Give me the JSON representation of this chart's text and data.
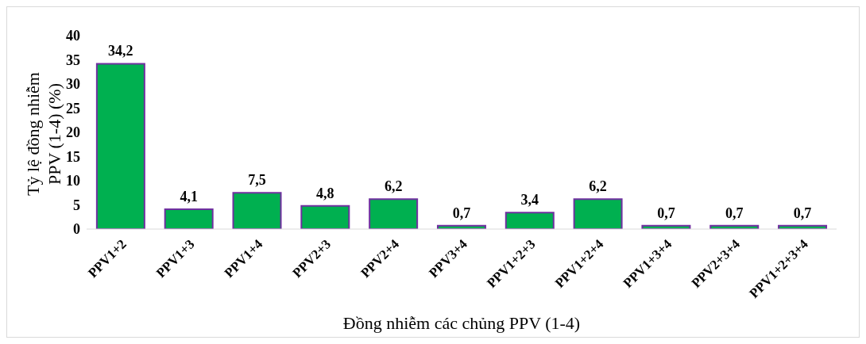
{
  "chart_data": {
    "type": "bar",
    "xlabel": "Đồng nhiễm các chủng PPV (1-4)",
    "ylabel": "Tỷ lệ đồng nhiễm PPV (1-4) (%)",
    "categories": [
      "PPV1+2",
      "PPV1+3",
      "PPV1+4",
      "PPV2+3",
      "PPV2+4",
      "PPV3+4",
      "PPV1+2+3",
      "PPV1+2+4",
      "PPV1+3+4",
      "PPV2+3+4",
      "PPV1+2+3+4"
    ],
    "values": [
      34.2,
      4.1,
      7.5,
      4.8,
      6.2,
      0.7,
      3.4,
      6.2,
      0.7,
      0.7,
      0.7
    ],
    "value_labels": [
      "34,2",
      "4,1",
      "7,5",
      "4,8",
      "6,2",
      "0,7",
      "3,4",
      "6,2",
      "0,7",
      "0,7",
      "0,7"
    ],
    "color": "#00b050",
    "ylim": [
      0,
      40
    ],
    "yticks": [
      0,
      5,
      10,
      15,
      20,
      25,
      30,
      35,
      40
    ],
    "grid": false,
    "legend": false
  }
}
